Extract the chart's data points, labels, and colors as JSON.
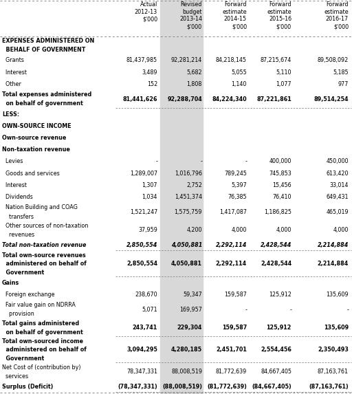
{
  "col_headers": [
    "",
    "Actual\n2012-13\n$'000",
    "Revised\nbudget\n2013-14\n$'000",
    "Forward\nestimate\n2014-15\n$'000",
    "Forward\nestimate\n2015-16\n$'000",
    "Forward\nestimate\n2016-17\n$'000"
  ],
  "rows": [
    {
      "label": "EXPENSES ADMINISTERED ON\n  BEHALF OF GOVERNMENT",
      "values": [
        "",
        "",
        "",
        "",
        ""
      ],
      "style": "bold",
      "underline": false
    },
    {
      "label": "  Grants",
      "values": [
        "81,437,985",
        "92,281,214",
        "84,218,145",
        "87,215,674",
        "89,508,092"
      ],
      "style": "normal",
      "underline": false
    },
    {
      "label": "  Interest",
      "values": [
        "3,489",
        "5,682",
        "5,055",
        "5,110",
        "5,185"
      ],
      "style": "normal",
      "underline": false
    },
    {
      "label": "  Other",
      "values": [
        "152",
        "1,808",
        "1,140",
        "1,077",
        "977"
      ],
      "style": "normal",
      "underline": false
    },
    {
      "label": "Total expenses administered\n  on behalf of government",
      "values": [
        "81,441,626",
        "92,288,704",
        "84,224,340",
        "87,221,861",
        "89,514,254"
      ],
      "style": "bold",
      "underline": true
    },
    {
      "label": "LESS:",
      "values": [
        "",
        "",
        "",
        "",
        ""
      ],
      "style": "bold",
      "underline": false
    },
    {
      "label": "OWN-SOURCE INCOME",
      "values": [
        "",
        "",
        "",
        "",
        ""
      ],
      "style": "bold",
      "underline": false
    },
    {
      "label": "Own-source revenue",
      "values": [
        "",
        "",
        "",
        "",
        ""
      ],
      "style": "bold",
      "underline": false
    },
    {
      "label": "Non-taxation revenue",
      "values": [
        "",
        "",
        "",
        "",
        ""
      ],
      "style": "bold",
      "underline": false
    },
    {
      "label": "  Levies",
      "values": [
        "-",
        "-",
        "-",
        "400,000",
        "450,000"
      ],
      "style": "normal",
      "underline": false
    },
    {
      "label": "  Goods and services",
      "values": [
        "1,289,007",
        "1,016,796",
        "789,245",
        "745,853",
        "613,420"
      ],
      "style": "normal",
      "underline": false
    },
    {
      "label": "  Interest",
      "values": [
        "1,307",
        "2,752",
        "5,397",
        "15,456",
        "33,014"
      ],
      "style": "normal",
      "underline": false
    },
    {
      "label": "  Dividends",
      "values": [
        "1,034",
        "1,451,374",
        "76,385",
        "76,410",
        "649,431"
      ],
      "style": "normal",
      "underline": false
    },
    {
      "label": "  Nation Building and COAG\n    transfers",
      "values": [
        "1,521,247",
        "1,575,759",
        "1,417,087",
        "1,186,825",
        "465,019"
      ],
      "style": "normal",
      "underline": false
    },
    {
      "label": "  Other sources of non-taxation\n    revenues",
      "values": [
        "37,959",
        "4,200",
        "4,000",
        "4,000",
        "4,000"
      ],
      "style": "normal",
      "underline": false
    },
    {
      "label": "Total non-taxation revenue",
      "values": [
        "2,850,554",
        "4,050,881",
        "2,292,114",
        "2,428,544",
        "2,214,884"
      ],
      "style": "bolditalic",
      "underline": true
    },
    {
      "label": "Total own-source revenues\n  administered on behalf of\n  Government",
      "values": [
        "2,850,554",
        "4,050,881",
        "2,292,114",
        "2,428,544",
        "2,214,884"
      ],
      "style": "bold",
      "underline": true
    },
    {
      "label": "Gains",
      "values": [
        "",
        "",
        "",
        "",
        ""
      ],
      "style": "bold",
      "underline": false
    },
    {
      "label": "  Foreign exchange",
      "values": [
        "238,670",
        "59,347",
        "159,587",
        "125,912",
        "135,609"
      ],
      "style": "normal",
      "underline": false
    },
    {
      "label": "  Fair value gain on NDRRA\n    provision",
      "values": [
        "5,071",
        "169,957",
        "-",
        "-",
        "-"
      ],
      "style": "normal",
      "underline": false
    },
    {
      "label": "Total gains administered\n  on behalf of government",
      "values": [
        "243,741",
        "229,304",
        "159,587",
        "125,912",
        "135,609"
      ],
      "style": "bold",
      "underline": true
    },
    {
      "label": "Total own-sourced income\n  administered on behalf of\n  Government",
      "values": [
        "3,094,295",
        "4,280,185",
        "2,451,701",
        "2,554,456",
        "2,350,493"
      ],
      "style": "bold",
      "underline": true
    },
    {
      "label": "Net Cost of (contribution by)\n  services",
      "values": [
        "78,347,331",
        "88,008,519",
        "81,772,639",
        "84,667,405",
        "87,163,761"
      ],
      "style": "normal",
      "underline": false
    },
    {
      "label": "Surplus (Deficit)",
      "values": [
        "(78,347,331)",
        "(88,008,519)",
        "(81,772,639)",
        "(84,667,405)",
        "(87,163,761)"
      ],
      "style": "bold",
      "underline": true
    }
  ],
  "bg_color": "#ffffff",
  "shade_color": "#d8d8d8",
  "font_size": 5.8,
  "header_font_size": 5.8,
  "line_color": "#888888"
}
